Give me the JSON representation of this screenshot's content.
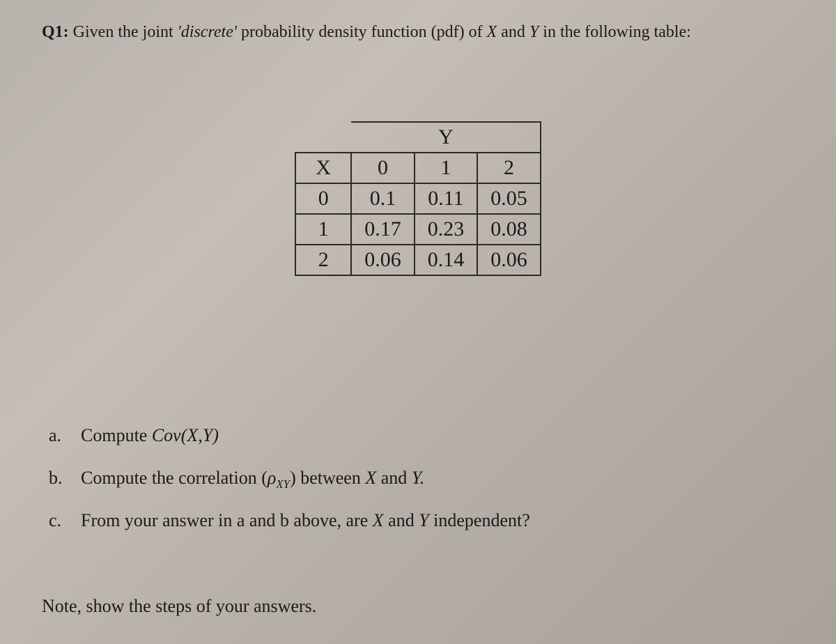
{
  "title_prefix": "Q1:",
  "title_text_1": " Given the joint ",
  "title_italic_1": "'discrete'",
  "title_text_2": " probability density function (pdf) of ",
  "title_var_x": "X",
  "title_text_3": " and ",
  "title_var_y": "Y",
  "title_text_4": " in the following table:",
  "table": {
    "y_label": "Y",
    "x_label": "X",
    "col_headers": [
      "0",
      "1",
      "2"
    ],
    "row_headers": [
      "0",
      "1",
      "2"
    ],
    "rows": [
      [
        "0.1",
        "0.11",
        "0.05"
      ],
      [
        "0.17",
        "0.23",
        "0.08"
      ],
      [
        "0.06",
        "0.14",
        "0.06"
      ]
    ],
    "border_color": "#2a2a2a",
    "font_size": 30,
    "cell_padding": "4px 18px"
  },
  "parts": {
    "a_marker": "a.",
    "a_text_1": "Compute ",
    "a_italic": "Cov(X,Y)",
    "b_marker": "b.",
    "b_text_1": "Compute the correlation (",
    "b_italic_rho": "ρ",
    "b_sub": "XY",
    "b_text_2": ") between ",
    "b_var_x": "X",
    "b_text_3": " and ",
    "b_var_y": "Y.",
    "c_marker": "c.",
    "c_text_1": "From your answer in a and b above, are ",
    "c_var_x": "X",
    "c_text_2": " and ",
    "c_var_y": "Y",
    "c_text_3": " independent?"
  },
  "note": "Note, show the steps of your answers.",
  "background_gradient": [
    "#b8b2ac",
    "#c4beb6",
    "#b5afa8",
    "#a8a29a"
  ],
  "text_color": "#1a1a1a"
}
